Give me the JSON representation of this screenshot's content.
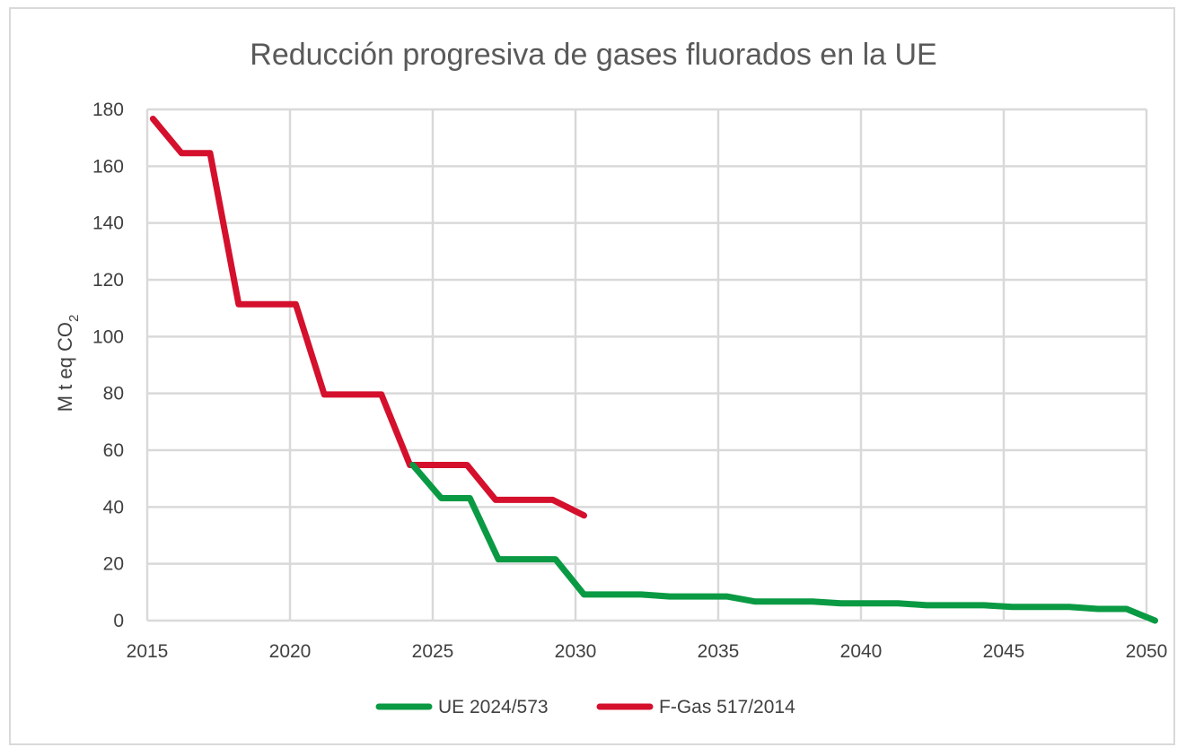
{
  "chart_data": {
    "type": "line",
    "title": "Reducción progresiva de gases fluorados en la UE",
    "xlabel": "",
    "ylabel": "M t eq CO",
    "ylabel_subscript": "2",
    "xlim": [
      2015,
      2050
    ],
    "ylim": [
      0,
      180
    ],
    "xticks": [
      2015,
      2020,
      2025,
      2030,
      2035,
      2040,
      2045,
      2050
    ],
    "yticks": [
      0,
      20,
      40,
      60,
      80,
      100,
      120,
      140,
      160,
      180
    ],
    "grid": true,
    "legend_position": "bottom",
    "series": [
      {
        "name": "UE 2024/573",
        "color": "#0a9a43",
        "x": [
          2024.3,
          2025.3,
          2026.3,
          2027.3,
          2028.3,
          2029.3,
          2030.3,
          2031.3,
          2032.3,
          2033.3,
          2034.3,
          2035.3,
          2036.3,
          2037.3,
          2038.3,
          2039.3,
          2040.3,
          2041.3,
          2042.3,
          2043.3,
          2044.3,
          2045.3,
          2046.3,
          2047.3,
          2048.3,
          2049.3,
          2050.3
        ],
        "y": [
          54.8,
          43.1,
          43.1,
          21.6,
          21.6,
          21.6,
          9.2,
          9.2,
          9.2,
          8.5,
          8.5,
          8.5,
          6.7,
          6.7,
          6.7,
          6.1,
          6.1,
          6.1,
          5.4,
          5.4,
          5.4,
          4.8,
          4.8,
          4.8,
          4.1,
          4.1,
          0
        ]
      },
      {
        "name": "F-Gas 517/2014",
        "color": "#d4102d",
        "x": [
          2015.2,
          2016.2,
          2017.2,
          2018.2,
          2019.2,
          2020.2,
          2021.2,
          2022.2,
          2023.2,
          2024.2,
          2025.2,
          2026.2,
          2027.2,
          2028.2,
          2029.2,
          2030.3
        ],
        "y": [
          176.7,
          164.6,
          164.6,
          111.4,
          111.4,
          111.4,
          79.6,
          79.6,
          79.6,
          54.8,
          54.8,
          54.8,
          42.5,
          42.5,
          42.5,
          37
        ]
      }
    ]
  }
}
